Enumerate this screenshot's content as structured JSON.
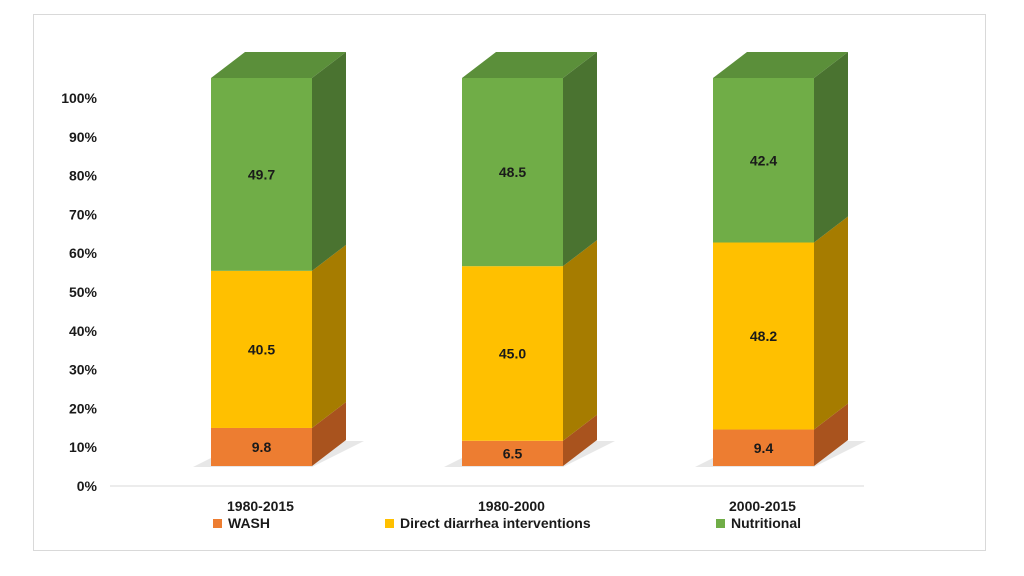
{
  "chart_data": {
    "type": "bar",
    "stacked": true,
    "three_d": true,
    "title": "",
    "xlabel": "",
    "ylabel": "",
    "ylim": [
      0,
      100
    ],
    "yticks": [
      "0%",
      "10%",
      "20%",
      "30%",
      "40%",
      "50%",
      "60%",
      "70%",
      "80%",
      "90%",
      "100%"
    ],
    "categories": [
      "1980-2015",
      "1980-2000",
      "2000-2015"
    ],
    "series": [
      {
        "name": "WASH",
        "values": [
          9.8,
          6.5,
          9.4
        ],
        "labels": [
          "9.8",
          "6.5",
          "9.4"
        ],
        "color": "#ED7D31",
        "side_color": "#A9531E"
      },
      {
        "name": "Direct diarrhea interventions",
        "values": [
          40.5,
          45.0,
          48.2
        ],
        "labels": [
          "40.5",
          "45.0",
          "48.2"
        ],
        "color": "#FFC000",
        "side_color": "#A67C00"
      },
      {
        "name": "Nutritional",
        "values": [
          49.7,
          48.5,
          42.4
        ],
        "labels": [
          "49.7",
          "48.5",
          "42.4"
        ],
        "color": "#70AD47",
        "side_color": "#4A7330",
        "top_color": "#5B8F3A"
      }
    ],
    "grid": false,
    "legend_position": "bottom"
  }
}
